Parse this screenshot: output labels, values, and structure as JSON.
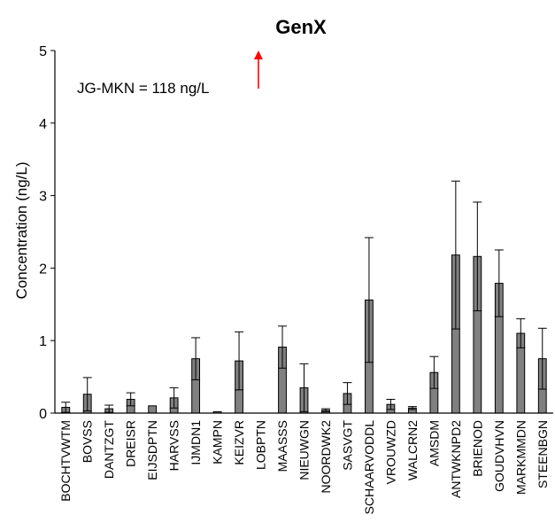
{
  "chart_data": {
    "type": "bar",
    "title": "GenX",
    "xlabel": "",
    "ylabel": "Concentration (ng/L)",
    "ylim": [
      0,
      5
    ],
    "yticks": [
      0,
      1,
      2,
      3,
      4,
      5
    ],
    "grid": false,
    "categories": [
      "BOCHTVWTM",
      "BOVSS",
      "DANTZGT",
      "DREISR",
      "EIJSDPTN",
      "HARVSS",
      "IJMDN1",
      "KAMPN",
      "KEIZVR",
      "LOBPTN",
      "MAASSS",
      "NIEUWGN",
      "NOORDWK2",
      "SASVGT",
      "SCHAARVODDL",
      "VROUWZD",
      "WALCRN2",
      "AMSDM",
      "ANTWKNPD2",
      "BRIENOD",
      "GOUDVHVN",
      "MARKMMDN",
      "STEENBGN"
    ],
    "values": [
      0.08,
      0.26,
      0.06,
      0.19,
      0.1,
      0.21,
      0.75,
      0.02,
      0.72,
      0.0,
      0.91,
      0.35,
      0.04,
      0.27,
      1.56,
      0.12,
      0.07,
      0.56,
      2.18,
      2.16,
      1.79,
      1.1,
      0.75
    ],
    "errors": [
      0.07,
      0.23,
      0.05,
      0.09,
      0.0,
      0.14,
      0.29,
      0.0,
      0.4,
      0.0,
      0.29,
      0.33,
      0.02,
      0.15,
      0.86,
      0.07,
      0.02,
      0.22,
      1.02,
      0.75,
      0.46,
      0.2,
      0.42
    ],
    "bar_color": "#808080",
    "annotation": {
      "text": "JG-MKN = 118 ng/L",
      "arrow_color": "#ff0000"
    }
  }
}
